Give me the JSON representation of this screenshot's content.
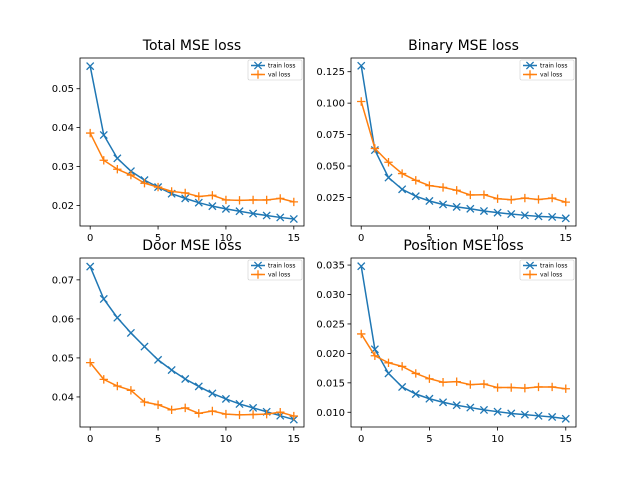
{
  "chart_data": [
    {
      "type": "line",
      "title": "Total MSE loss",
      "xlabel": "",
      "ylabel": "",
      "xlim": [
        -0.75,
        15.75
      ],
      "ylim": [
        0.0147,
        0.0579
      ],
      "x_ticks": [
        0,
        5,
        10,
        15
      ],
      "x_tick_labels": [
        "0",
        "5",
        "10",
        "15"
      ],
      "y_ticks": [
        0.02,
        0.03,
        0.04,
        0.05
      ],
      "y_tick_labels": [
        "0.02",
        "0.03",
        "0.04",
        "0.05"
      ],
      "legend_position": "top-right",
      "grid": false,
      "x": [
        0,
        1,
        2,
        3,
        4,
        5,
        6,
        7,
        8,
        9,
        10,
        11,
        12,
        13,
        14,
        15
      ],
      "series": [
        {
          "name": "train loss",
          "color": "#1f77b4",
          "marker": "x",
          "values": [
            0.0558,
            0.0381,
            0.0321,
            0.0288,
            0.0265,
            0.0247,
            0.023,
            0.0218,
            0.0207,
            0.0198,
            0.0191,
            0.0185,
            0.0179,
            0.0174,
            0.0169,
            0.0165
          ]
        },
        {
          "name": "val loss",
          "color": "#ff7f0e",
          "marker": "+",
          "values": [
            0.0386,
            0.0316,
            0.0293,
            0.0278,
            0.0257,
            0.0247,
            0.0236,
            0.0232,
            0.0223,
            0.0226,
            0.0214,
            0.0213,
            0.0214,
            0.0214,
            0.0218,
            0.0209
          ]
        }
      ]
    },
    {
      "type": "line",
      "title": "Binary MSE loss",
      "xlabel": "",
      "ylabel": "",
      "xlim": [
        -0.75,
        15.75
      ],
      "ylim": [
        0.0023,
        0.1359
      ],
      "x_ticks": [
        0,
        5,
        10,
        15
      ],
      "x_tick_labels": [
        "0",
        "5",
        "10",
        "15"
      ],
      "y_ticks": [
        0.025,
        0.05,
        0.075,
        0.1,
        0.125
      ],
      "y_tick_labels": [
        "0.025",
        "0.050",
        "0.075",
        "0.100",
        "0.125"
      ],
      "legend_position": "top-right",
      "grid": false,
      "x": [
        0,
        1,
        2,
        3,
        4,
        5,
        6,
        7,
        8,
        9,
        10,
        11,
        12,
        13,
        14,
        15
      ],
      "series": [
        {
          "name": "train loss",
          "color": "#1f77b4",
          "marker": "x",
          "values": [
            0.1297,
            0.0627,
            0.0408,
            0.0315,
            0.026,
            0.0222,
            0.0194,
            0.0175,
            0.016,
            0.0142,
            0.0129,
            0.0118,
            0.0108,
            0.01,
            0.0095,
            0.0084
          ]
        },
        {
          "name": "val loss",
          "color": "#ff7f0e",
          "marker": "+",
          "values": [
            0.1013,
            0.064,
            0.053,
            0.044,
            0.0386,
            0.0344,
            0.033,
            0.0307,
            0.027,
            0.0272,
            0.024,
            0.0232,
            0.0245,
            0.0234,
            0.0245,
            0.0213
          ]
        }
      ]
    },
    {
      "type": "line",
      "title": "Door MSE loss",
      "xlabel": "",
      "ylabel": "",
      "xlim": [
        -0.75,
        15.75
      ],
      "ylim": [
        0.0323,
        0.0756
      ],
      "x_ticks": [
        0,
        5,
        10,
        15
      ],
      "x_tick_labels": [
        "0",
        "5",
        "10",
        "15"
      ],
      "y_ticks": [
        0.04,
        0.05,
        0.06,
        0.07
      ],
      "y_tick_labels": [
        "0.04",
        "0.05",
        "0.06",
        "0.07"
      ],
      "legend_position": "top-right",
      "grid": false,
      "x": [
        0,
        1,
        2,
        3,
        4,
        5,
        6,
        7,
        8,
        9,
        10,
        11,
        12,
        13,
        14,
        15
      ],
      "series": [
        {
          "name": "train loss",
          "color": "#1f77b4",
          "marker": "x",
          "values": [
            0.0734,
            0.0651,
            0.0603,
            0.0564,
            0.0529,
            0.0495,
            0.0469,
            0.0446,
            0.0427,
            0.0409,
            0.0395,
            0.0382,
            0.0372,
            0.0362,
            0.0352,
            0.0342
          ]
        },
        {
          "name": "val loss",
          "color": "#ff7f0e",
          "marker": "+",
          "values": [
            0.0488,
            0.0445,
            0.0428,
            0.0417,
            0.0387,
            0.038,
            0.0367,
            0.0372,
            0.0358,
            0.0364,
            0.0356,
            0.0354,
            0.0355,
            0.0356,
            0.0361,
            0.0351
          ]
        }
      ]
    },
    {
      "type": "line",
      "title": "Position MSE loss",
      "xlabel": "",
      "ylabel": "",
      "xlim": [
        -0.75,
        15.75
      ],
      "ylim": [
        0.0075,
        0.0362
      ],
      "x_ticks": [
        0,
        5,
        10,
        15
      ],
      "x_tick_labels": [
        "0",
        "5",
        "10",
        "15"
      ],
      "y_ticks": [
        0.01,
        0.015,
        0.02,
        0.025,
        0.03,
        0.035
      ],
      "y_tick_labels": [
        "0.010",
        "0.015",
        "0.020",
        "0.025",
        "0.030",
        "0.035"
      ],
      "legend_position": "top-right",
      "grid": false,
      "x": [
        0,
        1,
        2,
        3,
        4,
        5,
        6,
        7,
        8,
        9,
        10,
        11,
        12,
        13,
        14,
        15
      ],
      "series": [
        {
          "name": "train loss",
          "color": "#1f77b4",
          "marker": "x",
          "values": [
            0.0348,
            0.0207,
            0.0166,
            0.0143,
            0.0131,
            0.0123,
            0.0117,
            0.0112,
            0.0108,
            0.0104,
            0.0101,
            0.0098,
            0.0096,
            0.0094,
            0.0092,
            0.0089
          ]
        },
        {
          "name": "val loss",
          "color": "#ff7f0e",
          "marker": "+",
          "values": [
            0.0233,
            0.0196,
            0.0184,
            0.0178,
            0.0166,
            0.0157,
            0.0151,
            0.0152,
            0.0147,
            0.0148,
            0.0142,
            0.0142,
            0.0141,
            0.0143,
            0.0143,
            0.014
          ]
        }
      ]
    }
  ]
}
